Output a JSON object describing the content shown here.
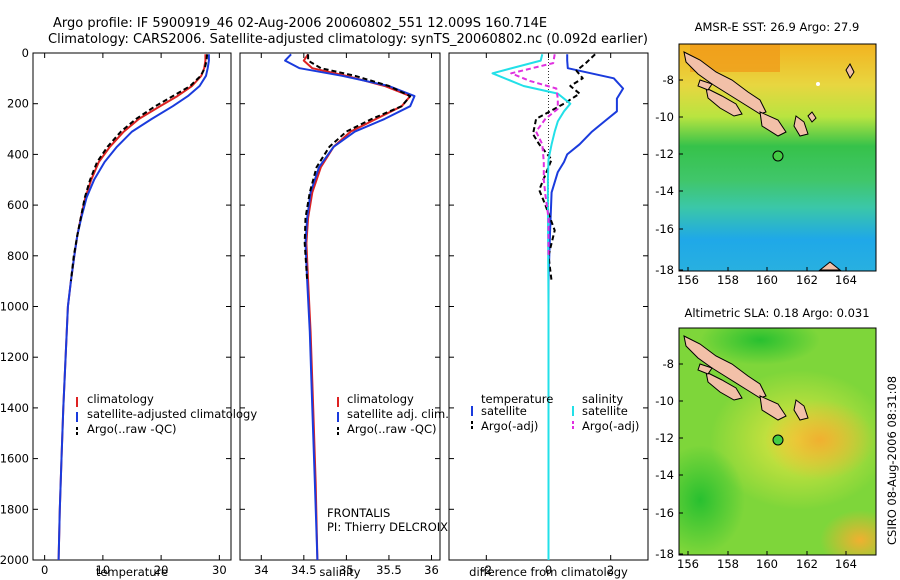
{
  "header": {
    "line1": "Argo profile: IF 5900919_46 02-Aug-2006 20060802_551 12.009S 160.714E",
    "line2": "Climatology: CARS2006. Satellite-adjusted climatology: synTS_20060802.nc (0.092d earlier)"
  },
  "credit": "CSIRO 08-Aug-2006 08:31:08",
  "project": {
    "name": "FRONTALIS",
    "pi": "PI: Thierry DELCROIX"
  },
  "colors": {
    "climatology": "#dd2222",
    "satellite": "#1a3bdd",
    "argo": "#000000",
    "sat_salinity": "#22e0e8",
    "argo_salinity": "#e030e0"
  },
  "chart_data": [
    {
      "type": "line",
      "id": "temperature",
      "xlabel": "temperature",
      "ylabel": "",
      "xlim": [
        -2,
        32
      ],
      "ylim": [
        2000,
        0
      ],
      "xticks": [
        0,
        10,
        20,
        30
      ],
      "yticks": [
        0,
        200,
        400,
        600,
        800,
        1000,
        1200,
        1400,
        1600,
        1800,
        2000
      ],
      "legend": [
        "climatology",
        "satellite-adjusted climatology",
        "Argo(..raw -QC)"
      ],
      "legend_placement": "lower-right",
      "series": [
        {
          "name": "climatology",
          "color": "#dd2222",
          "points": [
            [
              27.6,
              5
            ],
            [
              27.6,
              30
            ],
            [
              27.4,
              60
            ],
            [
              26.9,
              90
            ],
            [
              25.3,
              130
            ],
            [
              22.8,
              170
            ],
            [
              19.8,
              210
            ],
            [
              16.2,
              260
            ],
            [
              13.6,
              310
            ],
            [
              11.2,
              370
            ],
            [
              9.3,
              430
            ],
            [
              8.0,
              500
            ],
            [
              7.0,
              570
            ],
            [
              6.2,
              650
            ],
            [
              5.6,
              720
            ],
            [
              5.1,
              800
            ],
            [
              4.5,
              900
            ],
            [
              4.0,
              1000
            ],
            [
              3.6,
              1200
            ],
            [
              3.2,
              1400
            ],
            [
              2.9,
              1600
            ],
            [
              2.6,
              1800
            ],
            [
              2.4,
              2000
            ]
          ]
        },
        {
          "name": "satellite-adjusted climatology",
          "color": "#1a3bdd",
          "points": [
            [
              28.2,
              5
            ],
            [
              28.2,
              30
            ],
            [
              28.0,
              60
            ],
            [
              27.7,
              90
            ],
            [
              26.6,
              130
            ],
            [
              24.6,
              170
            ],
            [
              22.0,
              210
            ],
            [
              18.4,
              260
            ],
            [
              15.0,
              310
            ],
            [
              12.4,
              370
            ],
            [
              10.3,
              430
            ],
            [
              8.5,
              500
            ],
            [
              7.2,
              570
            ],
            [
              6.3,
              650
            ],
            [
              5.6,
              720
            ],
            [
              5.1,
              800
            ],
            [
              4.5,
              900
            ],
            [
              4.0,
              1000
            ],
            [
              3.6,
              1200
            ],
            [
              3.2,
              1400
            ],
            [
              2.9,
              1600
            ],
            [
              2.6,
              1800
            ],
            [
              2.4,
              2000
            ]
          ]
        },
        {
          "name": "Argo(..raw -QC)",
          "color": "#000000",
          "dashed": true,
          "points": [
            [
              27.9,
              5
            ],
            [
              27.8,
              30
            ],
            [
              27.5,
              60
            ],
            [
              26.8,
              90
            ],
            [
              25.0,
              130
            ],
            [
              22.0,
              170
            ],
            [
              19.0,
              210
            ],
            [
              15.7,
              260
            ],
            [
              13.1,
              310
            ],
            [
              10.8,
              370
            ],
            [
              9.0,
              430
            ],
            [
              7.8,
              500
            ],
            [
              6.9,
              570
            ],
            [
              6.2,
              650
            ],
            [
              5.6,
              720
            ],
            [
              5.0,
              800
            ],
            [
              4.5,
              900
            ]
          ]
        }
      ]
    },
    {
      "type": "line",
      "id": "salinity",
      "xlabel": "salinity",
      "xlim": [
        33.75,
        36.1
      ],
      "ylim": [
        2000,
        0
      ],
      "xticks": [
        34,
        34.5,
        35,
        35.5,
        36
      ],
      "legend": [
        "climatology",
        "satellite adj. clim.",
        "Argo(..raw -QC)"
      ],
      "legend_placement": "lower-right",
      "series": [
        {
          "name": "climatology",
          "color": "#dd2222",
          "points": [
            [
              34.55,
              5
            ],
            [
              34.5,
              30
            ],
            [
              34.6,
              60
            ],
            [
              35.0,
              90
            ],
            [
              35.45,
              130
            ],
            [
              35.75,
              170
            ],
            [
              35.65,
              210
            ],
            [
              35.35,
              260
            ],
            [
              35.05,
              310
            ],
            [
              34.85,
              370
            ],
            [
              34.7,
              450
            ],
            [
              34.6,
              550
            ],
            [
              34.55,
              650
            ],
            [
              34.53,
              750
            ],
            [
              34.55,
              900
            ],
            [
              34.58,
              1100
            ],
            [
              34.61,
              1400
            ],
            [
              34.64,
              1700
            ],
            [
              34.66,
              2000
            ]
          ]
        },
        {
          "name": "satellite adj. clim.",
          "color": "#1a3bdd",
          "points": [
            [
              34.35,
              5
            ],
            [
              34.28,
              30
            ],
            [
              34.45,
              60
            ],
            [
              34.95,
              90
            ],
            [
              35.5,
              130
            ],
            [
              35.8,
              170
            ],
            [
              35.75,
              210
            ],
            [
              35.45,
              260
            ],
            [
              35.1,
              310
            ],
            [
              34.85,
              370
            ],
            [
              34.68,
              450
            ],
            [
              34.58,
              550
            ],
            [
              34.54,
              650
            ],
            [
              34.52,
              750
            ],
            [
              34.54,
              900
            ],
            [
              34.57,
              1100
            ],
            [
              34.6,
              1400
            ],
            [
              34.63,
              1700
            ],
            [
              34.66,
              2000
            ]
          ]
        },
        {
          "name": "Argo(..raw -QC)",
          "color": "#000000",
          "dashed": true,
          "points": [
            [
              34.55,
              5
            ],
            [
              34.55,
              30
            ],
            [
              34.7,
              60
            ],
            [
              35.1,
              90
            ],
            [
              35.5,
              130
            ],
            [
              35.75,
              170
            ],
            [
              35.65,
              210
            ],
            [
              35.3,
              260
            ],
            [
              35.0,
              310
            ],
            [
              34.8,
              370
            ],
            [
              34.65,
              450
            ],
            [
              34.57,
              550
            ],
            [
              34.52,
              650
            ],
            [
              34.51,
              750
            ],
            [
              34.54,
              900
            ]
          ]
        }
      ]
    },
    {
      "type": "line",
      "id": "difference",
      "xlabel": "difference from climatology",
      "xlim": [
        -3.2,
        3.2
      ],
      "ylim": [
        2000,
        0
      ],
      "xticks": [
        -2,
        0,
        2
      ],
      "legend_groups": [
        {
          "title": "temperature",
          "entries": [
            "satellite",
            "Argo(-adj)"
          ]
        },
        {
          "title": "salinity",
          "entries": [
            "satellite",
            "Argo(-adj)"
          ]
        }
      ],
      "legend_placement": "lower",
      "series": [
        {
          "name": "temperature satellite",
          "color": "#1a3bdd",
          "points": [
            [
              0.6,
              5
            ],
            [
              0.6,
              30
            ],
            [
              0.62,
              60
            ],
            [
              2.1,
              100
            ],
            [
              2.4,
              140
            ],
            [
              2.2,
              180
            ],
            [
              2.2,
              230
            ],
            [
              1.8,
              270
            ],
            [
              1.4,
              310
            ],
            [
              1.0,
              360
            ],
            [
              0.6,
              400
            ],
            [
              0.5,
              430
            ],
            [
              0.3,
              470
            ],
            [
              0.1,
              550
            ],
            [
              0.05,
              700
            ],
            [
              0,
              900
            ],
            [
              0,
              2000
            ]
          ]
        },
        {
          "name": "temperature Argo(-adj)",
          "color": "#000000",
          "dashed": true,
          "points": [
            [
              1.5,
              5
            ],
            [
              1.2,
              40
            ],
            [
              0.9,
              70
            ],
            [
              1.1,
              100
            ],
            [
              0.7,
              130
            ],
            [
              1.0,
              160
            ],
            [
              0.5,
              200
            ],
            [
              -0.4,
              260
            ],
            [
              -0.5,
              320
            ],
            [
              -0.3,
              360
            ],
            [
              0.1,
              420
            ],
            [
              -0.1,
              480
            ],
            [
              -0.3,
              540
            ],
            [
              -0.1,
              600
            ],
            [
              0.2,
              700
            ],
            [
              0.0,
              800
            ],
            [
              0.1,
              900
            ]
          ]
        },
        {
          "name": "salinity satellite",
          "color": "#22e0e8",
          "points": [
            [
              -0.2,
              5
            ],
            [
              -0.25,
              30
            ],
            [
              -1.8,
              80
            ],
            [
              -0.8,
              130
            ],
            [
              0.3,
              160
            ],
            [
              0.7,
              200
            ],
            [
              0.5,
              230
            ],
            [
              0.3,
              270
            ],
            [
              0.2,
              310
            ],
            [
              0.1,
              360
            ],
            [
              0.0,
              420
            ],
            [
              -0.02,
              500
            ],
            [
              -0.02,
              600
            ],
            [
              -0.01,
              800
            ],
            [
              0,
              1000
            ],
            [
              0,
              2000
            ]
          ]
        },
        {
          "name": "salinity Argo(-adj)",
          "color": "#e030e0",
          "dashed": true,
          "points": [
            [
              0.2,
              5
            ],
            [
              0.15,
              40
            ],
            [
              -1.2,
              80
            ],
            [
              -0.6,
              110
            ],
            [
              0.25,
              140
            ],
            [
              0.3,
              180
            ],
            [
              0.3,
              220
            ],
            [
              -0.1,
              260
            ],
            [
              -0.4,
              310
            ],
            [
              -0.2,
              360
            ],
            [
              -0.15,
              430
            ],
            [
              -0.15,
              500
            ],
            [
              -0.1,
              560
            ],
            [
              0.0,
              650
            ],
            [
              0.0,
              800
            ]
          ]
        }
      ]
    }
  ],
  "maps": [
    {
      "id": "sst",
      "title": "AMSR-E SST: 26.9 Argo: 27.9",
      "xticks": [
        "156",
        "158",
        "160",
        "162",
        "164"
      ],
      "yticks": [
        "-8",
        "-10",
        "-12",
        "-14",
        "-16",
        "-18"
      ]
    },
    {
      "id": "sla",
      "title": "Altimetric SLA: 0.18 Argo: 0.031",
      "xticks": [
        "156",
        "158",
        "160",
        "162",
        "164"
      ],
      "yticks": [
        "-8",
        "-10",
        "-12",
        "-14",
        "-16",
        "-18"
      ]
    }
  ]
}
